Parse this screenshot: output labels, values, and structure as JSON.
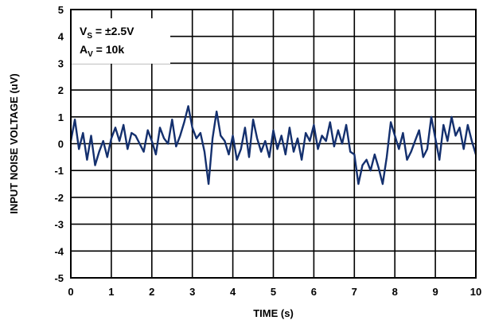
{
  "chart_data": {
    "type": "line",
    "xlabel": "TIME (s)",
    "ylabel": "INPUT NOISE VOLTAGE (uV)",
    "xlim": [
      0,
      10
    ],
    "ylim": [
      -5,
      5
    ],
    "x_ticks": [
      "0",
      "1",
      "2",
      "3",
      "4",
      "5",
      "6",
      "7",
      "8",
      "9",
      "10"
    ],
    "y_ticks": [
      "5",
      "4",
      "3",
      "2",
      "1",
      "0",
      "-1",
      "-2",
      "-3",
      "-4",
      "-5"
    ],
    "grid": true,
    "line_color": "#14306e",
    "annotations": [
      {
        "main": "V",
        "sub": "S",
        "rest": " = ±2.5V"
      },
      {
        "main": "A",
        "sub": "V",
        "rest": " = 10k"
      }
    ],
    "series": [
      {
        "x": [
          0,
          0.1,
          0.2,
          0.3,
          0.4,
          0.5,
          0.6,
          0.7,
          0.8,
          0.9,
          1.0,
          1.1,
          1.2,
          1.3,
          1.4,
          1.5,
          1.6,
          1.7,
          1.8,
          1.9,
          2.0,
          2.1,
          2.2,
          2.3,
          2.4,
          2.5,
          2.6,
          2.7,
          2.8,
          2.9,
          3.0,
          3.1,
          3.2,
          3.3,
          3.4,
          3.5,
          3.6,
          3.7,
          3.8,
          3.9,
          4.0,
          4.1,
          4.2,
          4.3,
          4.4,
          4.5,
          4.6,
          4.7,
          4.8,
          4.9,
          5.0,
          5.1,
          5.2,
          5.3,
          5.4,
          5.5,
          5.6,
          5.7,
          5.8,
          5.9,
          6.0,
          6.1,
          6.2,
          6.3,
          6.4,
          6.5,
          6.6,
          6.7,
          6.8,
          6.9,
          7.0,
          7.1,
          7.2,
          7.3,
          7.4,
          7.5,
          7.6,
          7.7,
          7.8,
          7.9,
          8.0,
          8.1,
          8.2,
          8.3,
          8.4,
          8.5,
          8.6,
          8.7,
          8.8,
          8.9,
          9.0,
          9.1,
          9.2,
          9.3,
          9.4,
          9.5,
          9.6,
          9.7,
          9.8,
          9.9,
          10.0
        ],
        "values": [
          0.1,
          0.9,
          -0.2,
          0.4,
          -0.6,
          0.3,
          -0.8,
          -0.3,
          0.1,
          -0.5,
          0.2,
          0.6,
          0.1,
          0.7,
          -0.2,
          0.4,
          0.3,
          0.0,
          -0.3,
          0.5,
          0.1,
          -0.4,
          0.6,
          0.2,
          0.0,
          0.9,
          -0.1,
          0.3,
          0.8,
          1.4,
          0.6,
          0.2,
          0.4,
          -0.3,
          -1.5,
          0.2,
          1.2,
          0.3,
          0.1,
          -0.4,
          0.3,
          -0.6,
          -0.2,
          0.6,
          -0.5,
          0.9,
          0.2,
          -0.3,
          0.1,
          -0.5,
          0.5,
          -0.2,
          0.3,
          -0.4,
          0.6,
          -0.3,
          0.2,
          -0.6,
          0.4,
          0.1,
          0.7,
          -0.2,
          0.3,
          0.1,
          0.8,
          -0.1,
          0.5,
          0.0,
          0.7,
          -0.3,
          -0.4,
          -1.5,
          -0.8,
          -0.6,
          -1.0,
          -0.4,
          -0.9,
          -1.5,
          -0.5,
          0.8,
          0.3,
          -0.2,
          0.4,
          -0.6,
          -0.3,
          0.1,
          0.5,
          -0.5,
          -0.2,
          1.0,
          0.2,
          -0.6,
          0.7,
          0.1,
          1.0,
          0.3,
          0.6,
          -0.2,
          0.7,
          0.1,
          -0.4
        ]
      }
    ]
  }
}
